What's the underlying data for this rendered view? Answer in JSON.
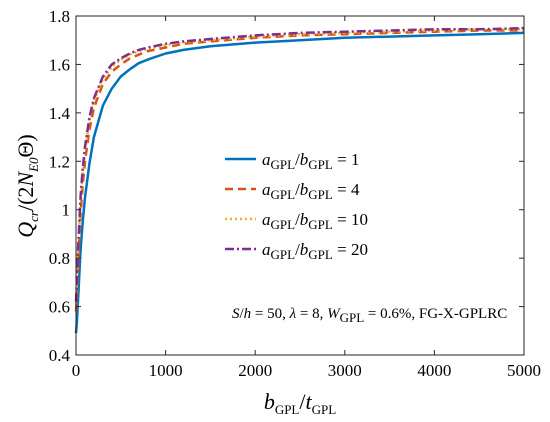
{
  "chart_data": {
    "type": "line",
    "xlabel": {
      "main": "b",
      "main_sub": "GPL",
      "slash": "/",
      "second": "t",
      "second_sub": "GPL"
    },
    "ylabel": {
      "q": "Q",
      "q_sub": "cr",
      "mid": "/(2",
      "n": "N",
      "n_sub": "E0",
      "tail": "Θ)"
    },
    "xlim": [
      0,
      5000
    ],
    "ylim": [
      0.4,
      1.8
    ],
    "xticks": [
      0,
      1000,
      2000,
      3000,
      4000,
      5000
    ],
    "yticks": [
      0.4,
      0.6,
      0.8,
      1,
      1.2,
      1.4,
      1.6,
      1.8
    ],
    "xtick_labels": [
      "0",
      "1000",
      "2000",
      "3000",
      "4000",
      "5000"
    ],
    "ytick_labels": [
      "0.4",
      "0.6",
      "0.8",
      "1",
      "1.2",
      "1.4",
      "1.6",
      "1.8"
    ],
    "grid": false,
    "legend_position": "center",
    "annotation": {
      "s": "S",
      "slash_h": "/",
      "h": "h",
      "eq1": " = 50, ",
      "lambda": "λ",
      "eq2": " = 8, ",
      "w": "W",
      "w_sub": "GPL",
      "eq3": " = 0.6%, FG-X-GPLRC"
    },
    "series": [
      {
        "legend": {
          "a": "a",
          "a_sub": "GPL",
          "slash": "/",
          "b": "b",
          "b_sub": "GPL",
          "eq": " = 1"
        },
        "color": "#0072BD",
        "dash": "solid",
        "x": [
          0,
          10,
          25,
          50,
          75,
          100,
          150,
          200,
          300,
          400,
          500,
          600,
          700,
          800,
          1000,
          1200,
          1500,
          2000,
          2500,
          3000,
          3500,
          4000,
          4500,
          5000
        ],
        "y": [
          0.49,
          0.54,
          0.64,
          0.83,
          0.95,
          1.05,
          1.19,
          1.3,
          1.43,
          1.5,
          1.55,
          1.58,
          1.605,
          1.62,
          1.645,
          1.66,
          1.675,
          1.69,
          1.7,
          1.71,
          1.715,
          1.72,
          1.725,
          1.73
        ]
      },
      {
        "legend": {
          "a": "a",
          "a_sub": "GPL",
          "slash": "/",
          "b": "b",
          "b_sub": "GPL",
          "eq": " = 4"
        },
        "color": "#D95319",
        "dash": "dashed",
        "x": [
          0,
          10,
          25,
          50,
          75,
          100,
          150,
          200,
          300,
          400,
          500,
          600,
          700,
          800,
          1000,
          1200,
          1500,
          2000,
          2500,
          3000,
          3500,
          4000,
          4500,
          5000
        ],
        "y": [
          0.58,
          0.64,
          0.78,
          0.98,
          1.1,
          1.2,
          1.33,
          1.42,
          1.52,
          1.57,
          1.6,
          1.625,
          1.64,
          1.655,
          1.67,
          1.685,
          1.695,
          1.71,
          1.72,
          1.725,
          1.73,
          1.735,
          1.74,
          1.74
        ]
      },
      {
        "legend": {
          "a": "a",
          "a_sub": "GPL",
          "slash": "/",
          "b": "b",
          "b_sub": "GPL",
          "eq": " = 10"
        },
        "color": "#EDB120",
        "dash": "dotted",
        "x": [
          0,
          10,
          25,
          50,
          75,
          100,
          150,
          200,
          300,
          400,
          500,
          600,
          700,
          800,
          1000,
          1200,
          1500,
          2000,
          2500,
          3000,
          3500,
          4000,
          4500,
          5000
        ],
        "y": [
          0.61,
          0.68,
          0.83,
          1.03,
          1.15,
          1.24,
          1.37,
          1.45,
          1.54,
          1.59,
          1.62,
          1.64,
          1.655,
          1.665,
          1.68,
          1.69,
          1.7,
          1.715,
          1.725,
          1.73,
          1.735,
          1.74,
          1.745,
          1.745
        ]
      },
      {
        "legend": {
          "a": "a",
          "a_sub": "GPL",
          "slash": "/",
          "b": "b",
          "b_sub": "GPL",
          "eq": " = 20"
        },
        "color": "#7E2F8E",
        "dash": "dashdot",
        "x": [
          0,
          10,
          25,
          50,
          75,
          100,
          150,
          200,
          300,
          400,
          500,
          600,
          700,
          800,
          1000,
          1200,
          1500,
          2000,
          2500,
          3000,
          3500,
          4000,
          4500,
          5000
        ],
        "y": [
          0.62,
          0.7,
          0.85,
          1.05,
          1.17,
          1.26,
          1.38,
          1.46,
          1.55,
          1.6,
          1.625,
          1.645,
          1.66,
          1.67,
          1.685,
          1.695,
          1.705,
          1.72,
          1.73,
          1.735,
          1.74,
          1.745,
          1.745,
          1.75
        ]
      }
    ]
  }
}
